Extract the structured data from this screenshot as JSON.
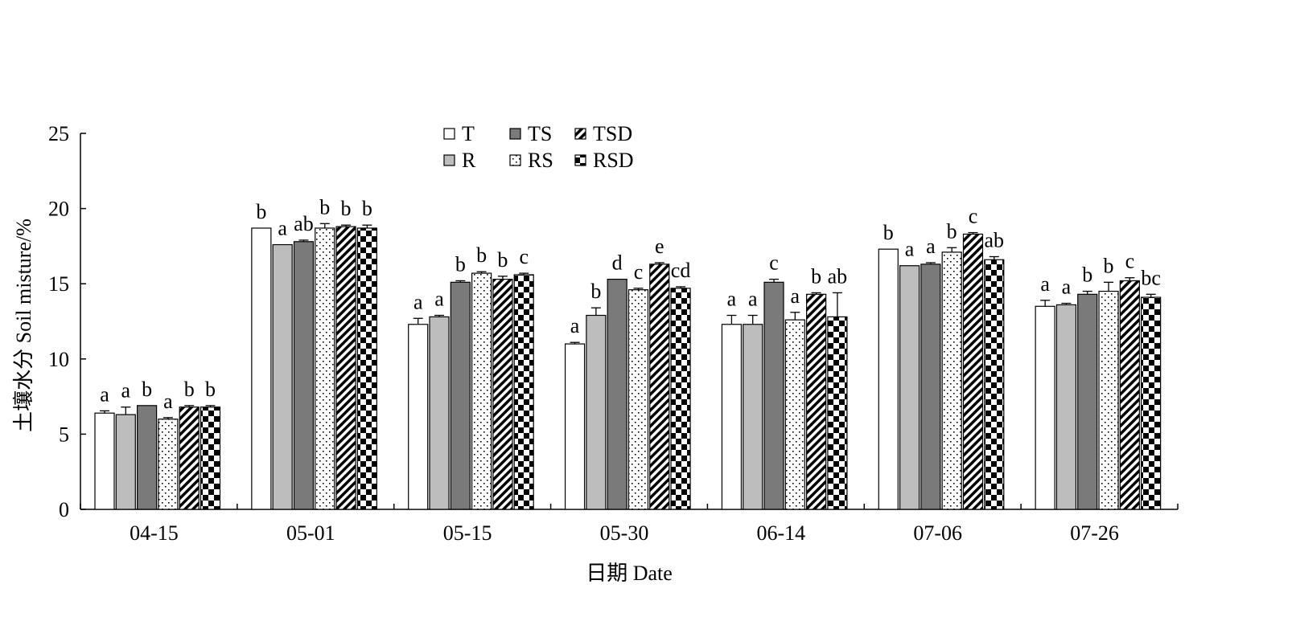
{
  "chart_data": {
    "type": "bar",
    "xlabel": "日期 Date",
    "ylabel": "土壤水分 Soil misture/%",
    "ylim": [
      0,
      25
    ],
    "yticks": [
      "0",
      "5",
      "10",
      "15",
      "20",
      "25"
    ],
    "categories": [
      "04-15",
      "05-01",
      "05-15",
      "05-30",
      "06-14",
      "07-06",
      "07-26"
    ],
    "legend_placement": "top-center",
    "grid": false,
    "series": [
      {
        "name": "T",
        "pattern": "white",
        "values": [
          6.4,
          18.7,
          12.3,
          11.0,
          12.3,
          17.3,
          13.5
        ],
        "errors": [
          0.15,
          0.0,
          0.4,
          0.1,
          0.6,
          0.0,
          0.4
        ],
        "letters": [
          "a",
          "b",
          "a",
          "a",
          "a",
          "b",
          "a"
        ]
      },
      {
        "name": "R",
        "pattern": "lightgray",
        "values": [
          6.3,
          17.6,
          12.8,
          12.9,
          12.3,
          16.2,
          13.6
        ],
        "errors": [
          0.5,
          0.0,
          0.1,
          0.5,
          0.6,
          0.0,
          0.1
        ],
        "letters": [
          "a",
          "a",
          "a",
          "b",
          "a",
          "a",
          "a"
        ]
      },
      {
        "name": "TS",
        "pattern": "darkgray",
        "values": [
          6.9,
          17.8,
          15.1,
          15.3,
          15.1,
          16.3,
          14.3
        ],
        "errors": [
          0.0,
          0.1,
          0.1,
          0.0,
          0.2,
          0.1,
          0.2
        ],
        "letters": [
          "b",
          "ab",
          "b",
          "d",
          "c",
          "a",
          "b"
        ]
      },
      {
        "name": "RS",
        "pattern": "dots",
        "values": [
          6.0,
          18.7,
          15.7,
          14.6,
          12.6,
          17.1,
          14.5
        ],
        "errors": [
          0.1,
          0.3,
          0.1,
          0.1,
          0.5,
          0.3,
          0.6
        ],
        "letters": [
          "a",
          "b",
          "b",
          "c",
          "a",
          "b",
          "b"
        ]
      },
      {
        "name": "TSD",
        "pattern": "diagonal",
        "values": [
          6.8,
          18.8,
          15.3,
          16.3,
          14.3,
          18.3,
          15.2
        ],
        "errors": [
          0.1,
          0.1,
          0.2,
          0.1,
          0.1,
          0.1,
          0.2
        ],
        "letters": [
          "b",
          "b",
          "b",
          "e",
          "b",
          "c",
          "c"
        ]
      },
      {
        "name": "RSD",
        "pattern": "checker",
        "values": [
          6.8,
          18.7,
          15.6,
          14.7,
          12.8,
          16.6,
          14.1
        ],
        "errors": [
          0.1,
          0.2,
          0.1,
          0.1,
          1.6,
          0.2,
          0.2
        ],
        "letters": [
          "b",
          "b",
          "c",
          "cd",
          "ab",
          "ab",
          "bc"
        ]
      }
    ]
  }
}
